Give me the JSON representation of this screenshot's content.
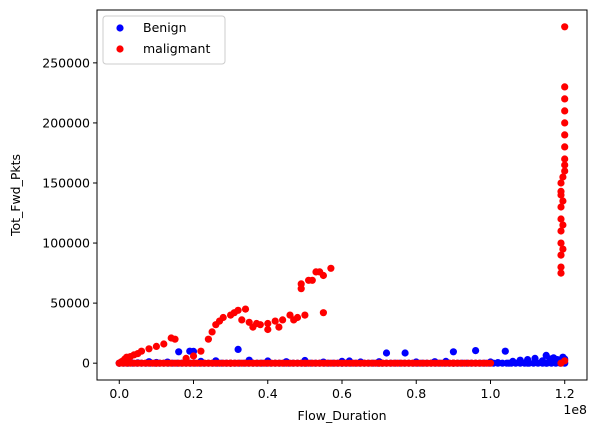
{
  "chart_data": {
    "type": "scatter",
    "xlabel": "Flow_Duration",
    "ylabel": "Tot_Fwd_Pkts",
    "x_offset_label": "1e8",
    "xlim": [
      -0.06,
      1.26
    ],
    "ylim": [
      -14000,
      294000
    ],
    "x_ticks": [
      0.0,
      0.2,
      0.4,
      0.6,
      0.8,
      1.0,
      1.2
    ],
    "x_tick_labels": [
      "0.0",
      "0.2",
      "0.4",
      "0.6",
      "0.8",
      "1.0",
      "1.2"
    ],
    "y_ticks": [
      0,
      50000,
      100000,
      150000,
      200000,
      250000
    ],
    "y_tick_labels": [
      "0",
      "50000",
      "100000",
      "150000",
      "200000",
      "250000"
    ],
    "x_unit_note": "x values are in units of 1e8",
    "legend_position": "upper-left",
    "grid": false,
    "series": [
      {
        "name": "Benign",
        "color": "#0000ff",
        "points": [
          [
            0.0,
            0
          ],
          [
            0.01,
            400
          ],
          [
            0.02,
            800
          ],
          [
            0.05,
            300
          ],
          [
            0.08,
            1200
          ],
          [
            0.1,
            600
          ],
          [
            0.13,
            900
          ],
          [
            0.16,
            9500
          ],
          [
            0.19,
            10000
          ],
          [
            0.2,
            9800
          ],
          [
            0.22,
            1500
          ],
          [
            0.26,
            2000
          ],
          [
            0.32,
            11500
          ],
          [
            0.35,
            2500
          ],
          [
            0.4,
            1800
          ],
          [
            0.45,
            1200
          ],
          [
            0.5,
            2200
          ],
          [
            0.55,
            900
          ],
          [
            0.6,
            1500
          ],
          [
            0.62,
            1800
          ],
          [
            0.65,
            1000
          ],
          [
            0.7,
            1200
          ],
          [
            0.72,
            8500
          ],
          [
            0.77,
            8500
          ],
          [
            0.8,
            1000
          ],
          [
            0.85,
            1200
          ],
          [
            0.88,
            1500
          ],
          [
            0.9,
            9500
          ],
          [
            0.96,
            10500
          ],
          [
            1.0,
            1000
          ],
          [
            1.02,
            500
          ],
          [
            1.04,
            10000
          ],
          [
            1.06,
            1500
          ],
          [
            1.08,
            2500
          ],
          [
            1.1,
            3000
          ],
          [
            1.12,
            4000
          ],
          [
            1.14,
            2000
          ],
          [
            1.15,
            6500
          ],
          [
            1.16,
            3500
          ],
          [
            1.17,
            4500
          ],
          [
            1.18,
            3000
          ],
          [
            1.19,
            2500
          ],
          [
            1.195,
            5000
          ],
          [
            1.2,
            3500
          ],
          [
            0.3,
            0
          ],
          [
            0.6,
            0
          ],
          [
            0.9,
            0
          ],
          [
            1.05,
            0
          ],
          [
            1.1,
            0
          ],
          [
            1.15,
            0
          ],
          [
            1.2,
            0
          ]
        ]
      },
      {
        "name": "maligmant",
        "color": "#ff0000",
        "points": [
          [
            0.0,
            0
          ],
          [
            0.005,
            1000
          ],
          [
            0.01,
            2000
          ],
          [
            0.015,
            3500
          ],
          [
            0.02,
            5000
          ],
          [
            0.03,
            5500
          ],
          [
            0.04,
            7000
          ],
          [
            0.05,
            8000
          ],
          [
            0.06,
            10000
          ],
          [
            0.08,
            12000
          ],
          [
            0.1,
            14000
          ],
          [
            0.12,
            16000
          ],
          [
            0.14,
            21000
          ],
          [
            0.15,
            20000
          ],
          [
            0.18,
            4000
          ],
          [
            0.2,
            6000
          ],
          [
            0.22,
            10000
          ],
          [
            0.24,
            20000
          ],
          [
            0.25,
            26000
          ],
          [
            0.26,
            32000
          ],
          [
            0.27,
            35000
          ],
          [
            0.28,
            38000
          ],
          [
            0.3,
            40000
          ],
          [
            0.31,
            42000
          ],
          [
            0.32,
            44000
          ],
          [
            0.34,
            45000
          ],
          [
            0.33,
            36000
          ],
          [
            0.35,
            34000
          ],
          [
            0.37,
            33000
          ],
          [
            0.38,
            32000
          ],
          [
            0.4,
            33000
          ],
          [
            0.42,
            35000
          ],
          [
            0.44,
            36000
          ],
          [
            0.46,
            40000
          ],
          [
            0.47,
            36000
          ],
          [
            0.48,
            38000
          ],
          [
            0.49,
            62000
          ],
          [
            0.49,
            66000
          ],
          [
            0.5,
            40000
          ],
          [
            0.51,
            69000
          ],
          [
            0.52,
            69000
          ],
          [
            0.53,
            76000
          ],
          [
            0.54,
            76000
          ],
          [
            0.55,
            73000
          ],
          [
            0.57,
            79000
          ],
          [
            0.55,
            42000
          ],
          [
            0.43,
            30000
          ],
          [
            0.4,
            28000
          ],
          [
            0.36,
            30000
          ],
          [
            0.1,
            0
          ],
          [
            0.3,
            0
          ],
          [
            0.5,
            0
          ],
          [
            0.7,
            0
          ],
          [
            0.9,
            0
          ],
          [
            1.0,
            0
          ],
          [
            1.19,
            0
          ],
          [
            1.19,
            75000
          ],
          [
            1.19,
            80000
          ],
          [
            1.19,
            90000
          ],
          [
            1.19,
            100000
          ],
          [
            1.19,
            110000
          ],
          [
            1.19,
            120000
          ],
          [
            1.19,
            130000
          ],
          [
            1.19,
            140000
          ],
          [
            1.19,
            143000
          ],
          [
            1.19,
            150000
          ],
          [
            1.2,
            160000
          ],
          [
            1.2,
            165000
          ],
          [
            1.2,
            170000
          ],
          [
            1.2,
            180000
          ],
          [
            1.2,
            190000
          ],
          [
            1.2,
            200000
          ],
          [
            1.2,
            210000
          ],
          [
            1.2,
            220000
          ],
          [
            1.2,
            230000
          ],
          [
            1.2,
            280000
          ],
          [
            1.195,
            95000
          ],
          [
            1.195,
            115000
          ],
          [
            1.195,
            135000
          ],
          [
            1.195,
            155000
          ],
          [
            1.2,
            2000
          ]
        ]
      }
    ]
  }
}
